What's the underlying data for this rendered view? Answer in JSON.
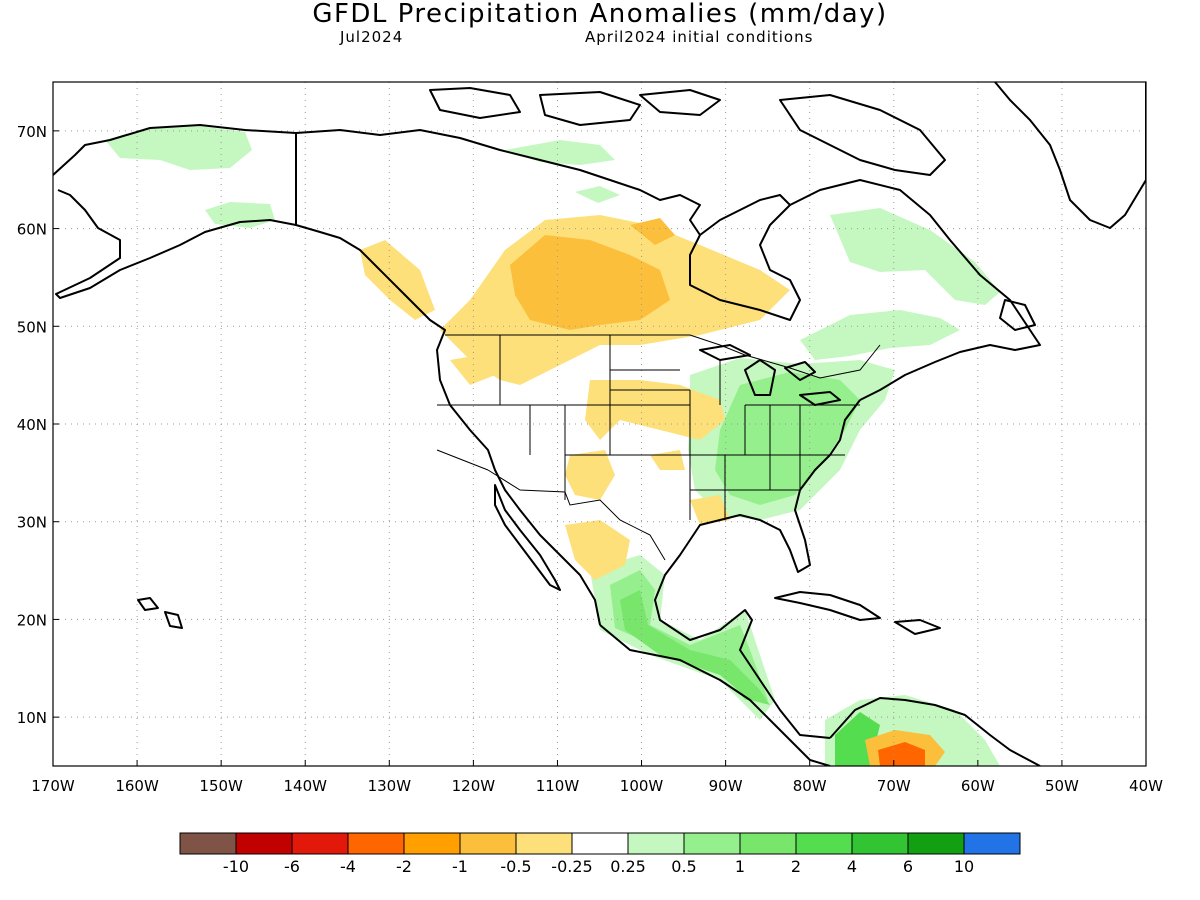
{
  "header": {
    "title": "GFDL Precipitation Anomalies (mm/day)",
    "month": "Jul2024",
    "init": "April2024 initial conditions"
  },
  "map": {
    "lat_labels": [
      "70N",
      "60N",
      "50N",
      "40N",
      "30N",
      "20N",
      "10N"
    ],
    "lon_labels": [
      "170W",
      "160W",
      "150W",
      "140W",
      "130W",
      "120W",
      "110W",
      "100W",
      "90W",
      "80W",
      "70W",
      "60W",
      "50W",
      "40W"
    ],
    "grid": "dotted",
    "projection": "lat-lon",
    "lon_range": [
      -170,
      -40
    ],
    "lat_range": [
      5,
      75
    ]
  },
  "colorbar": {
    "colors": [
      "#7f5447",
      "#c10000",
      "#e2180a",
      "#ff6600",
      "#ffa000",
      "#fbbf3c",
      "#fde07a",
      "#ffffff",
      "#c5f7c1",
      "#94ef8c",
      "#77e66b",
      "#55dd50",
      "#33c433",
      "#129f12",
      "#2273e5"
    ],
    "tick_labels": [
      "-10",
      "-6",
      "-4",
      "-2",
      "-1",
      "-0.5",
      "-0.25",
      "0.25",
      "0.5",
      "1",
      "2",
      "4",
      "6",
      "10"
    ]
  },
  "anomaly_regions": [
    {
      "name": "alaska-north-slope-wet",
      "category": "0.25-0.5"
    },
    {
      "name": "canada-prairies-dry",
      "category": "-0.5--1"
    },
    {
      "name": "northern-plains-dry",
      "category": "-0.25--0.5"
    },
    {
      "name": "eastern-us-wet",
      "category": "0.5-1"
    },
    {
      "name": "quebec-wet",
      "category": "0.25-0.5"
    },
    {
      "name": "southern-mexico-central-america-wet",
      "category": "1-2"
    },
    {
      "name": "northern-south-america-dry",
      "category": "-2--4"
    }
  ]
}
